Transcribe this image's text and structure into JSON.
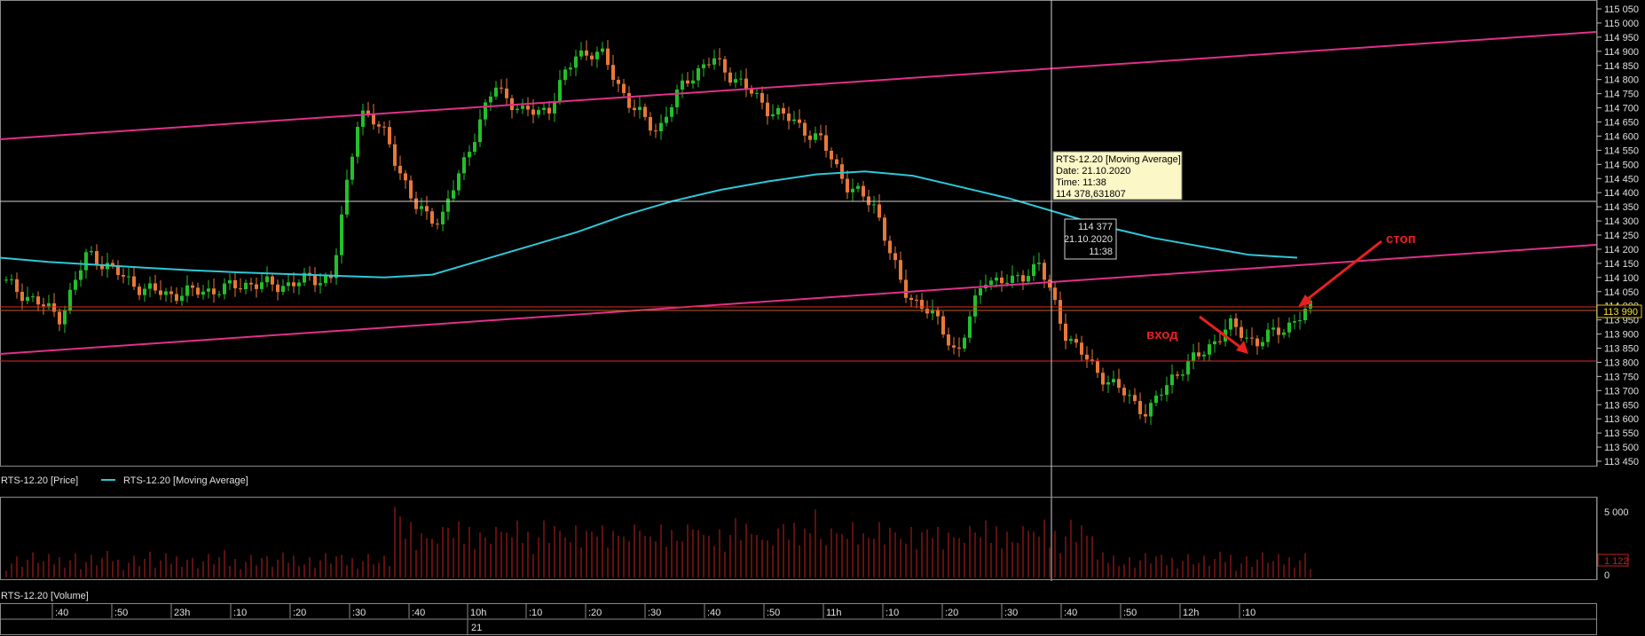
{
  "price_panel": {
    "legend": {
      "price": "RTS-12.20 [Price]",
      "ma": "RTS-12.20 [Moving Average]"
    },
    "y_ticks": [
      "115 050",
      "115 000",
      "114 950",
      "114 900",
      "114 850",
      "114 800",
      "114 750",
      "114 700",
      "114 650",
      "114 600",
      "114 550",
      "114 500",
      "114 450",
      "114 400",
      "114 350",
      "114 300",
      "114 250",
      "114 200",
      "114 150",
      "114 100",
      "114 050",
      "114 000",
      "113 950",
      "113 900",
      "113 850",
      "113 800",
      "113 750",
      "113 700",
      "113 650",
      "113 600",
      "113 550",
      "113 500",
      "113 450"
    ],
    "last_price_label": "113 990",
    "tooltip": {
      "title": "RTS-12.20 [Moving Average]",
      "date": "Date: 21.10.2020",
      "time": "Time: 11:38",
      "value": "114 378,631807"
    },
    "crosshair_box": {
      "price": "114 377",
      "date": "21.10.2020",
      "time": "11:38"
    },
    "annotations": {
      "stop": "стоп",
      "entry": "вход"
    }
  },
  "volume_panel": {
    "legend": "RTS-12.20 [Volume]",
    "y_ticks": [
      "5 000",
      "0"
    ],
    "last_volume_label": "1 122"
  },
  "time_axis": {
    "labels": [
      ":40",
      ":50",
      "23h",
      ":10",
      ":20",
      ":30",
      ":40",
      "10h",
      ":10",
      ":20",
      ":30",
      ":40",
      ":50",
      "11h",
      ":10",
      ":20",
      ":30",
      ":40",
      ":50",
      "12h",
      ":10"
    ],
    "date_label": "21"
  },
  "colors": {
    "up": "#22c02a",
    "down": "#e8783a",
    "ma": "#2ec8d8",
    "channel": "#e0308a",
    "level": "#e02828",
    "volume": "#c02020",
    "arrow": "#e82020"
  },
  "chart_data": {
    "type": "candlestick",
    "series": [
      {
        "name": "RTS-12.20 [Price]",
        "close_path_approx": [
          114080,
          114020,
          113960,
          114190,
          114120,
          114060,
          114040,
          114050,
          114060,
          114080,
          114070,
          114090,
          114100,
          114700,
          114600,
          114350,
          114300,
          114550,
          114780,
          114680,
          114700,
          114900,
          114880,
          114700,
          114620,
          114800,
          114870,
          114790,
          114700,
          114650,
          114580,
          114420,
          114350,
          114050,
          113980,
          113830,
          114100,
          114080,
          114150,
          113900,
          113780,
          113700,
          113620,
          113760,
          113830,
          113930,
          113870,
          113920,
          113990
        ]
      },
      {
        "name": "RTS-12.20 [Moving Average]",
        "values_approx": [
          114170,
          114155,
          114145,
          114135,
          114125,
          114118,
          114112,
          114106,
          114100,
          114110,
          114160,
          114210,
          114260,
          114320,
          114370,
          114410,
          114440,
          114465,
          114475,
          114460,
          114420,
          114380,
          114330,
          114280,
          114240,
          114210,
          114180,
          114170
        ]
      }
    ],
    "horizontal_levels": [
      113990,
      113810,
      114378.63
    ],
    "ylim": [
      113425,
      115075
    ]
  }
}
